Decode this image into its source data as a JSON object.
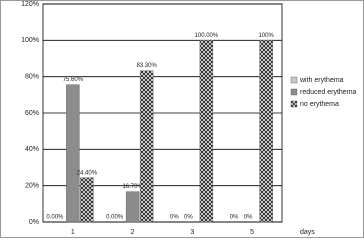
{
  "chart_data": {
    "type": "bar",
    "categories": [
      "1",
      "2",
      "3",
      "5"
    ],
    "x_label": "days",
    "series": [
      {
        "name": "with erythema",
        "color": "#c8c8c8",
        "values": [
          0,
          0,
          0,
          0
        ],
        "value_labels": [
          "0.00%",
          "0.00%",
          "0%",
          "0%"
        ]
      },
      {
        "name": "reduced erythema",
        "color": "#8c8c8c",
        "values": [
          75.6,
          16.7,
          0,
          0
        ],
        "value_labels": [
          "75.60%",
          "16.70%",
          "0%",
          "0%"
        ]
      },
      {
        "name": "no erythema",
        "color": "#1e1e1e",
        "hatch": true,
        "values": [
          24.4,
          83.3,
          100,
          100
        ],
        "value_labels": [
          "24.40%",
          "83.30%",
          "100.00%",
          "100%"
        ]
      }
    ],
    "ylim": [
      0,
      120
    ],
    "yticks": [
      {
        "value": 0,
        "label": "0%"
      },
      {
        "value": 20,
        "label": "20%"
      },
      {
        "value": 40,
        "label": "40%"
      },
      {
        "value": 60,
        "label": "60%"
      },
      {
        "value": 80,
        "label": "80%"
      },
      {
        "value": 100,
        "label": "100%"
      },
      {
        "value": 120,
        "label": "120%"
      }
    ],
    "grid": true,
    "legend": "right"
  }
}
